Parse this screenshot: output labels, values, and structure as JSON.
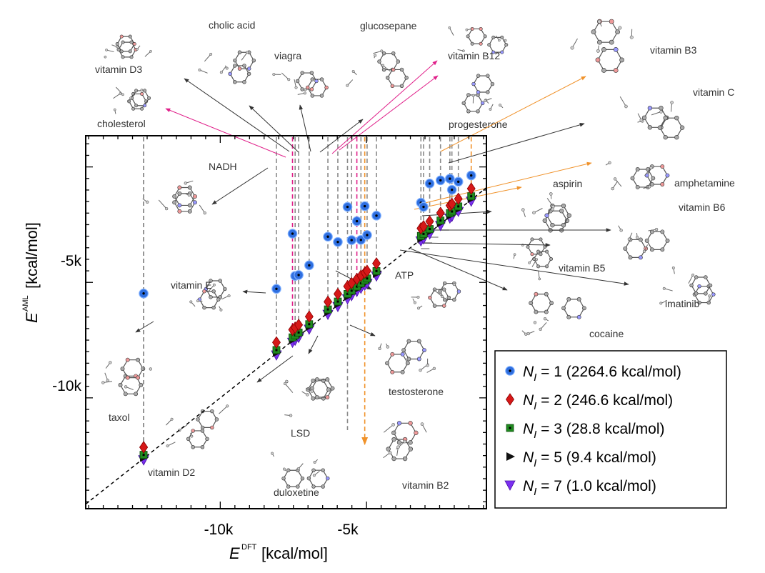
{
  "chart_data": {
    "type": "scatter",
    "xlabel": "E",
    "xlabel_sup": "DFT",
    "xlabel_unit": "[kcal/mol]",
    "ylabel": "E",
    "ylabel_sup": "AML",
    "ylabel_unit": "[kcal/mol]",
    "xlim": [
      -14600,
      -900
    ],
    "ylim": [
      -14800,
      1350
    ],
    "x_ticks": [
      {
        "value": -10000,
        "label": "-10k"
      },
      {
        "value": -5000,
        "label": "-5k"
      }
    ],
    "y_ticks": [
      {
        "value": -5000,
        "label": "-5k"
      },
      {
        "value": -10000,
        "label": "-10k"
      }
    ],
    "diagonal": true,
    "grid": false,
    "legend_placement": "bottom-right",
    "molecules": [
      {
        "name": "taxol",
        "dft": -12620,
        "n1": -5480
      },
      {
        "name": "vitamin D2",
        "dft": -12620,
        "n1": null
      },
      {
        "name": "vitamin E",
        "dft": -8080,
        "n1": -5280
      },
      {
        "name": "cholesterol",
        "dft": -7530,
        "n1": -2890
      },
      {
        "name": "vitamin D3",
        "dft": -7440,
        "n1": -4720
      },
      {
        "name": "NADH",
        "dft": -7320,
        "n1": -4680
      },
      {
        "name": "cholic acid",
        "dft": -6960,
        "n1": -4260
      },
      {
        "name": "LSD",
        "dft": -6320,
        "n1": -3020
      },
      {
        "name": "viagra",
        "dft": -5980,
        "n1": -3250
      },
      {
        "name": "duloxetine",
        "dft": -5650,
        "n1": -1730
      },
      {
        "name": "glucosepane",
        "dft": -5510,
        "n1": -3170
      },
      {
        "name": "vitamin B12",
        "dft": -5330,
        "n1": -2350
      },
      {
        "name": "testosterone",
        "dft": -5190,
        "n1": -3160
      },
      {
        "name": "vitamin B2",
        "dft": -5060,
        "n1": -1700
      },
      {
        "name": "progesterone",
        "dft": -4980,
        "n1": -2950
      },
      {
        "name": "ATP",
        "dft": -4660,
        "n1": -2110
      },
      {
        "name": "vitamin B5",
        "dft": -3140,
        "n1": -1550
      },
      {
        "name": "imatinib",
        "dft": -3050,
        "n1": -1730
      },
      {
        "name": "cocaine",
        "dft": -2840,
        "n1": -720
      },
      {
        "name": "vitamin B6",
        "dft": -2470,
        "n1": -580
      },
      {
        "name": "amphetamine",
        "dft": -2150,
        "n1": -510
      },
      {
        "name": "aspirin",
        "dft": -2080,
        "n1": -990
      },
      {
        "name": "vitamin C",
        "dft": -1860,
        "n1": -640
      },
      {
        "name": "vitamin B3",
        "dft": -1420,
        "n1": -370
      }
    ],
    "series": [
      {
        "name": "N_I = 1",
        "legend_n": "1",
        "legend_mae": "(2264.6 kcal/mol)",
        "marker": "circle",
        "color": "#2f6fe0",
        "offset": null
      },
      {
        "name": "N_I = 2",
        "legend_n": "2",
        "legend_mae": "(246.6 kcal/mol)",
        "marker": "diamond",
        "color": "#d61818",
        "offset": 480
      },
      {
        "name": "N_I = 3",
        "legend_n": "3",
        "legend_mae": "(28.8 kcal/mol)",
        "marker": "square",
        "color": "#1f8a1f",
        "offset": 150
      },
      {
        "name": "N_I = 5",
        "legend_n": "5",
        "legend_mae": "(9.4 kcal/mol)",
        "marker": "triangle-right",
        "color": "#111111",
        "offset": 40
      },
      {
        "name": "N_I = 7",
        "legend_n": "7",
        "legend_mae": "(1.0 kcal/mol)",
        "marker": "triangle-down",
        "color": "#7b2ff0",
        "offset": -70
      }
    ]
  },
  "legend": {
    "prefix": "N",
    "subscript": "I",
    "equals": " = "
  },
  "colors": {
    "guide_gray": "#8a8a8a",
    "guide_magenta": "#e0208a",
    "guide_orange": "#f0922a",
    "arrow_dark": "#333333"
  }
}
